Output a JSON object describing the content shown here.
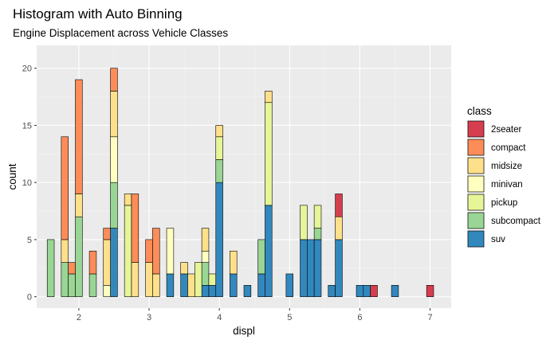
{
  "chart_data": {
    "type": "bar",
    "stacked": true,
    "title": "Histogram with Auto Binning",
    "subtitle": "Engine Displacement across Vehicle Classes",
    "xlabel": "displ",
    "ylabel": "count",
    "xlim": [
      1.4,
      7.3
    ],
    "ylim": [
      -1,
      22
    ],
    "xticks": [
      2,
      3,
      4,
      5,
      6,
      7
    ],
    "yticks": [
      0,
      5,
      10,
      15,
      20
    ],
    "grid": true,
    "legend_title": "class",
    "legend_position": "right",
    "bin_width": 0.1,
    "series": [
      {
        "name": "suv",
        "color": "#3288bd",
        "values": [
          [
            2.5,
            6
          ],
          [
            3.3,
            2
          ],
          [
            3.5,
            2
          ],
          [
            3.8,
            1
          ],
          [
            3.9,
            1
          ],
          [
            4.0,
            10
          ],
          [
            4.2,
            2
          ],
          [
            4.4,
            1
          ],
          [
            4.6,
            2
          ],
          [
            4.7,
            8
          ],
          [
            5.0,
            2
          ],
          [
            5.2,
            5
          ],
          [
            5.3,
            5
          ],
          [
            5.4,
            5
          ],
          [
            5.6,
            1
          ],
          [
            5.7,
            5
          ],
          [
            6.0,
            1
          ],
          [
            6.1,
            1
          ],
          [
            6.5,
            1
          ]
        ]
      },
      {
        "name": "subcompact",
        "color": "#99d594",
        "values": [
          [
            1.6,
            5
          ],
          [
            1.8,
            3
          ],
          [
            1.9,
            2
          ],
          [
            2.0,
            7
          ],
          [
            2.2,
            2
          ],
          [
            2.5,
            4
          ],
          [
            3.8,
            2
          ],
          [
            4.0,
            2
          ],
          [
            4.6,
            3
          ],
          [
            5.4,
            1
          ]
        ]
      },
      {
        "name": "pickup",
        "color": "#e6f598",
        "values": [
          [
            2.7,
            8
          ],
          [
            3.7,
            3
          ],
          [
            3.9,
            1
          ],
          [
            4.0,
            2
          ],
          [
            4.7,
            9
          ],
          [
            5.2,
            3
          ],
          [
            5.4,
            2
          ]
        ]
      },
      {
        "name": "minivan",
        "color": "#ffffbf",
        "values": [
          [
            2.4,
            1
          ],
          [
            2.5,
            4
          ],
          [
            3.3,
            4
          ],
          [
            3.8,
            1
          ]
        ]
      },
      {
        "name": "midsize",
        "color": "#fee08b",
        "values": [
          [
            1.8,
            2
          ],
          [
            2.0,
            2
          ],
          [
            2.4,
            4
          ],
          [
            2.5,
            4
          ],
          [
            2.7,
            1
          ],
          [
            2.8,
            3
          ],
          [
            3.0,
            3
          ],
          [
            3.1,
            2
          ],
          [
            3.5,
            1
          ],
          [
            3.6,
            2
          ],
          [
            3.8,
            2
          ],
          [
            4.0,
            1
          ],
          [
            4.2,
            2
          ],
          [
            4.7,
            1
          ],
          [
            5.7,
            2
          ]
        ]
      },
      {
        "name": "compact",
        "color": "#fc8d59",
        "values": [
          [
            1.8,
            9
          ],
          [
            1.9,
            1
          ],
          [
            2.0,
            10
          ],
          [
            2.2,
            2
          ],
          [
            2.4,
            1
          ],
          [
            2.5,
            2
          ],
          [
            2.8,
            6
          ],
          [
            3.0,
            2
          ],
          [
            3.1,
            4
          ]
        ]
      },
      {
        "name": "2seater",
        "color": "#d53e4f",
        "values": [
          [
            5.7,
            2
          ],
          [
            6.2,
            1
          ],
          [
            7.0,
            1
          ]
        ]
      }
    ],
    "legend_order": [
      "2seater",
      "compact",
      "midsize",
      "minivan",
      "pickup",
      "subcompact",
      "suv"
    ]
  }
}
